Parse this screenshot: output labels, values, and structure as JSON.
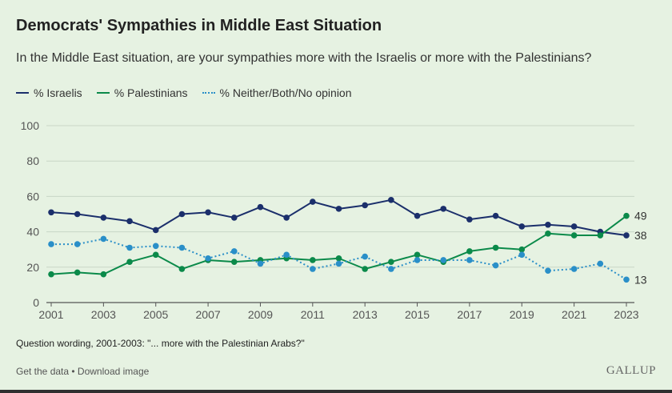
{
  "header": {
    "title": "Democrats' Sympathies in Middle East Situation",
    "subtitle": "In the Middle East situation, are your sympathies more with the Israelis or more with the Palestinians?"
  },
  "legend": {
    "israelis": "% Israelis",
    "palestinians": "% Palestinians",
    "neither": "% Neither/Both/No opinion"
  },
  "colors": {
    "israelis": "#1b2f6b",
    "palestinians": "#0b8a4a",
    "neither": "#2a8fc8",
    "grid": "#c9d6c6",
    "axis": "#555555"
  },
  "chart_data": {
    "type": "line",
    "title": "Democrats' Sympathies in Middle East Situation",
    "xlabel": "",
    "ylabel": "",
    "ylim": [
      0,
      100
    ],
    "yticks": [
      0,
      20,
      40,
      60,
      80,
      100
    ],
    "xticks": [
      2001,
      2003,
      2005,
      2007,
      2009,
      2011,
      2013,
      2015,
      2017,
      2019,
      2021,
      2023
    ],
    "x": [
      2001,
      2002,
      2003,
      2004,
      2005,
      2006,
      2007,
      2008,
      2009,
      2010,
      2011,
      2012,
      2013,
      2014,
      2015,
      2016,
      2017,
      2018,
      2019,
      2020,
      2021,
      2022,
      2023
    ],
    "series": [
      {
        "key": "israelis",
        "name": "% Israelis",
        "style": "solid",
        "values": [
          51,
          50,
          48,
          46,
          41,
          50,
          51,
          48,
          54,
          48,
          57,
          53,
          55,
          58,
          49,
          53,
          47,
          49,
          43,
          44,
          43,
          40,
          38
        ],
        "end_label": "38"
      },
      {
        "key": "palestinians",
        "name": "% Palestinians",
        "style": "solid",
        "values": [
          16,
          17,
          16,
          23,
          27,
          19,
          24,
          23,
          24,
          25,
          24,
          25,
          19,
          23,
          27,
          23,
          29,
          31,
          30,
          39,
          38,
          38,
          49
        ],
        "end_label": "49"
      },
      {
        "key": "neither",
        "name": "% Neither/Both/No opinion",
        "style": "dotted",
        "values": [
          33,
          33,
          36,
          31,
          32,
          31,
          25,
          29,
          22,
          27,
          19,
          22,
          26,
          19,
          24,
          24,
          24,
          21,
          27,
          18,
          19,
          22,
          13
        ],
        "end_label": "13"
      }
    ]
  },
  "footnote": "Question wording, 2001-2003: \"... more with the Palestinian Arabs?\"",
  "links": {
    "get_data": "Get the data",
    "separator": " • ",
    "download": "Download image"
  },
  "brand": "GALLUP"
}
